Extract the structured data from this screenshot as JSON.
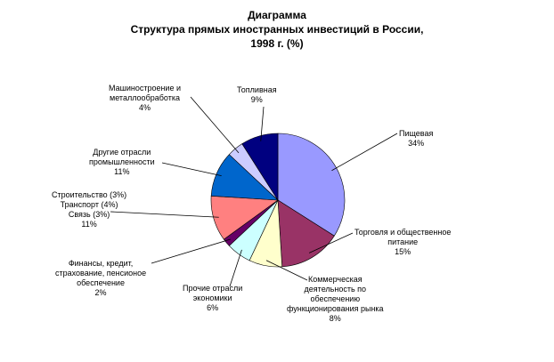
{
  "chart_data": {
    "type": "pie",
    "title": [
      "Диаграмма",
      "Структура прямых иностранных инвестиций в России,",
      "1998 г. (%)"
    ],
    "slices": [
      {
        "lines": [
          "Пищевая",
          "34%"
        ],
        "value": 34,
        "color": "#9999ff"
      },
      {
        "lines": [
          "Торговля и общественное",
          "питание",
          "15%"
        ],
        "value": 15,
        "color": "#993366"
      },
      {
        "lines": [
          "Коммерческая",
          "деятельность по",
          "обеспечению",
          "функционирования рынка",
          "8%"
        ],
        "value": 8,
        "color": "#ffffcc"
      },
      {
        "lines": [
          "Прочие отрасли",
          "экономики",
          "6%"
        ],
        "value": 6,
        "color": "#ccffff"
      },
      {
        "lines": [
          "Финансы, кредит,",
          "страхование, пенсионое",
          "обеспечение",
          "2%"
        ],
        "value": 2,
        "color": "#660066"
      },
      {
        "lines": [
          "Строительство (3%)",
          "Транспорт (4%)",
          "Связь (3%)",
          "11%"
        ],
        "value": 11,
        "color": "#ff8080"
      },
      {
        "lines": [
          "Другие отрасли",
          "промышленности",
          "11%"
        ],
        "value": 11,
        "color": "#0066cc"
      },
      {
        "lines": [
          "Машиностроение и",
          "металлообработка",
          "4%"
        ],
        "value": 4,
        "color": "#ccccff"
      },
      {
        "lines": [
          "Топливная",
          "9%"
        ],
        "value": 9,
        "color": "#000080"
      }
    ]
  }
}
